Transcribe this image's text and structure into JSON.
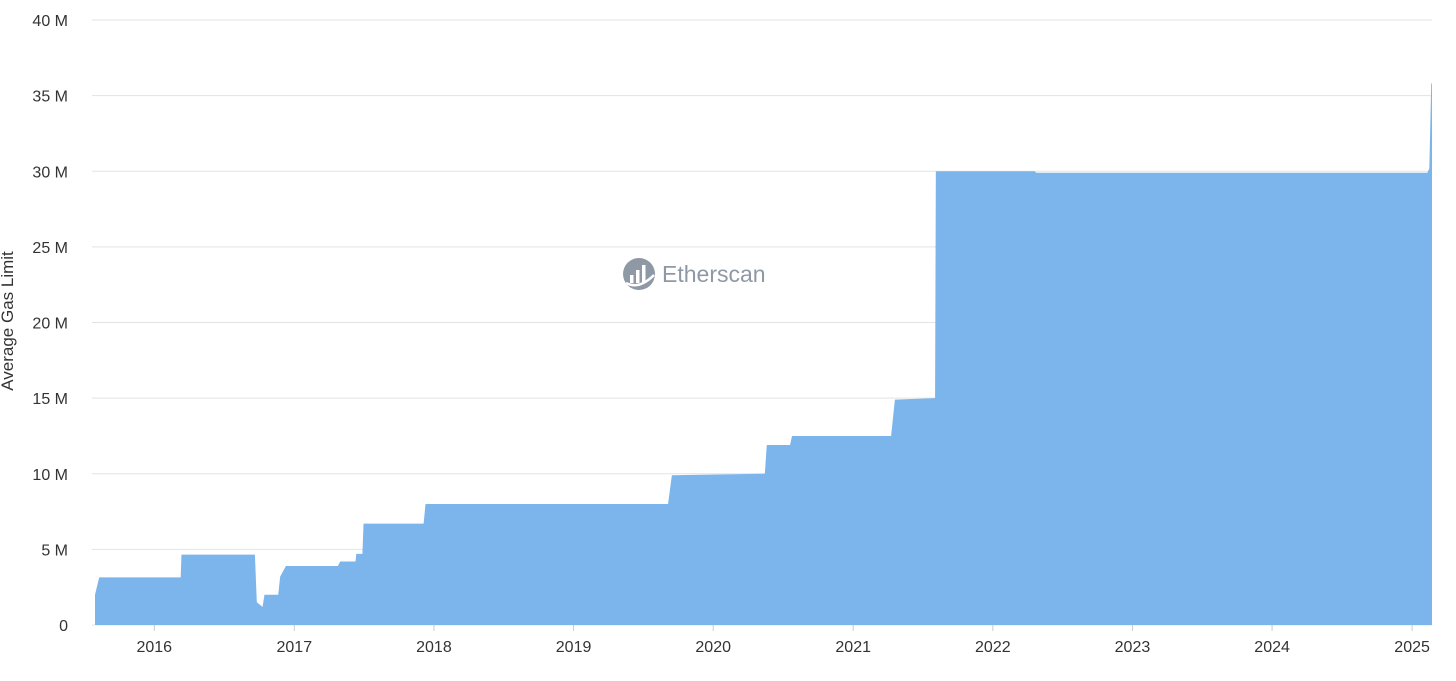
{
  "chart_data": {
    "type": "area",
    "ylabel": "Average Gas Limit",
    "watermark": "Etherscan",
    "series_color": "#7cb5ec",
    "grid_color": "#e3e3e3",
    "grid": true,
    "ylim": [
      0,
      40000000
    ],
    "yticks": [
      {
        "value": 0,
        "label": "0"
      },
      {
        "value": 5000000,
        "label": "5 M"
      },
      {
        "value": 10000000,
        "label": "10 M"
      },
      {
        "value": 15000000,
        "label": "15 M"
      },
      {
        "value": 20000000,
        "label": "20 M"
      },
      {
        "value": 25000000,
        "label": "25 M"
      },
      {
        "value": 30000000,
        "label": "30 M"
      },
      {
        "value": 35000000,
        "label": "35 M"
      },
      {
        "value": 40000000,
        "label": "40 M"
      }
    ],
    "xlim": [
      "2015-07-30",
      "2025-02-22"
    ],
    "xticks": [
      {
        "value": "2016-01-01",
        "label": "2016"
      },
      {
        "value": "2017-01-01",
        "label": "2017"
      },
      {
        "value": "2018-01-01",
        "label": "2018"
      },
      {
        "value": "2019-01-01",
        "label": "2019"
      },
      {
        "value": "2020-01-01",
        "label": "2020"
      },
      {
        "value": "2021-01-01",
        "label": "2021"
      },
      {
        "value": "2022-01-01",
        "label": "2022"
      },
      {
        "value": "2023-01-01",
        "label": "2023"
      },
      {
        "value": "2024-01-01",
        "label": "2024"
      },
      {
        "value": "2025-01-01",
        "label": "2025"
      }
    ],
    "points": [
      {
        "x": "2015-07-30",
        "y": 2000000
      },
      {
        "x": "2015-08-10",
        "y": 3150000
      },
      {
        "x": "2016-03-10",
        "y": 3150000
      },
      {
        "x": "2016-03-12",
        "y": 4650000
      },
      {
        "x": "2016-09-20",
        "y": 4650000
      },
      {
        "x": "2016-09-25",
        "y": 1500000
      },
      {
        "x": "2016-10-10",
        "y": 1200000
      },
      {
        "x": "2016-10-15",
        "y": 2000000
      },
      {
        "x": "2016-11-20",
        "y": 2000000
      },
      {
        "x": "2016-11-25",
        "y": 3200000
      },
      {
        "x": "2016-12-10",
        "y": 3900000
      },
      {
        "x": "2017-04-25",
        "y": 3900000
      },
      {
        "x": "2017-05-01",
        "y": 4200000
      },
      {
        "x": "2017-06-10",
        "y": 4200000
      },
      {
        "x": "2017-06-12",
        "y": 4700000
      },
      {
        "x": "2017-06-28",
        "y": 4700000
      },
      {
        "x": "2017-07-01",
        "y": 6700000
      },
      {
        "x": "2017-12-05",
        "y": 6700000
      },
      {
        "x": "2017-12-10",
        "y": 8000000
      },
      {
        "x": "2019-09-05",
        "y": 8000000
      },
      {
        "x": "2019-09-15",
        "y": 9900000
      },
      {
        "x": "2020-05-15",
        "y": 10000000
      },
      {
        "x": "2020-05-20",
        "y": 11900000
      },
      {
        "x": "2020-07-20",
        "y": 11900000
      },
      {
        "x": "2020-07-25",
        "y": 12500000
      },
      {
        "x": "2021-04-10",
        "y": 12500000
      },
      {
        "x": "2021-04-20",
        "y": 14900000
      },
      {
        "x": "2021-08-03",
        "y": 15000000
      },
      {
        "x": "2021-08-05",
        "y": 30000000
      },
      {
        "x": "2022-04-20",
        "y": 30000000
      },
      {
        "x": "2022-04-25",
        "y": 29900000
      },
      {
        "x": "2025-02-10",
        "y": 29900000
      },
      {
        "x": "2025-02-15",
        "y": 30200000
      },
      {
        "x": "2025-02-20",
        "y": 35800000
      },
      {
        "x": "2025-02-22",
        "y": 35800000
      }
    ]
  }
}
